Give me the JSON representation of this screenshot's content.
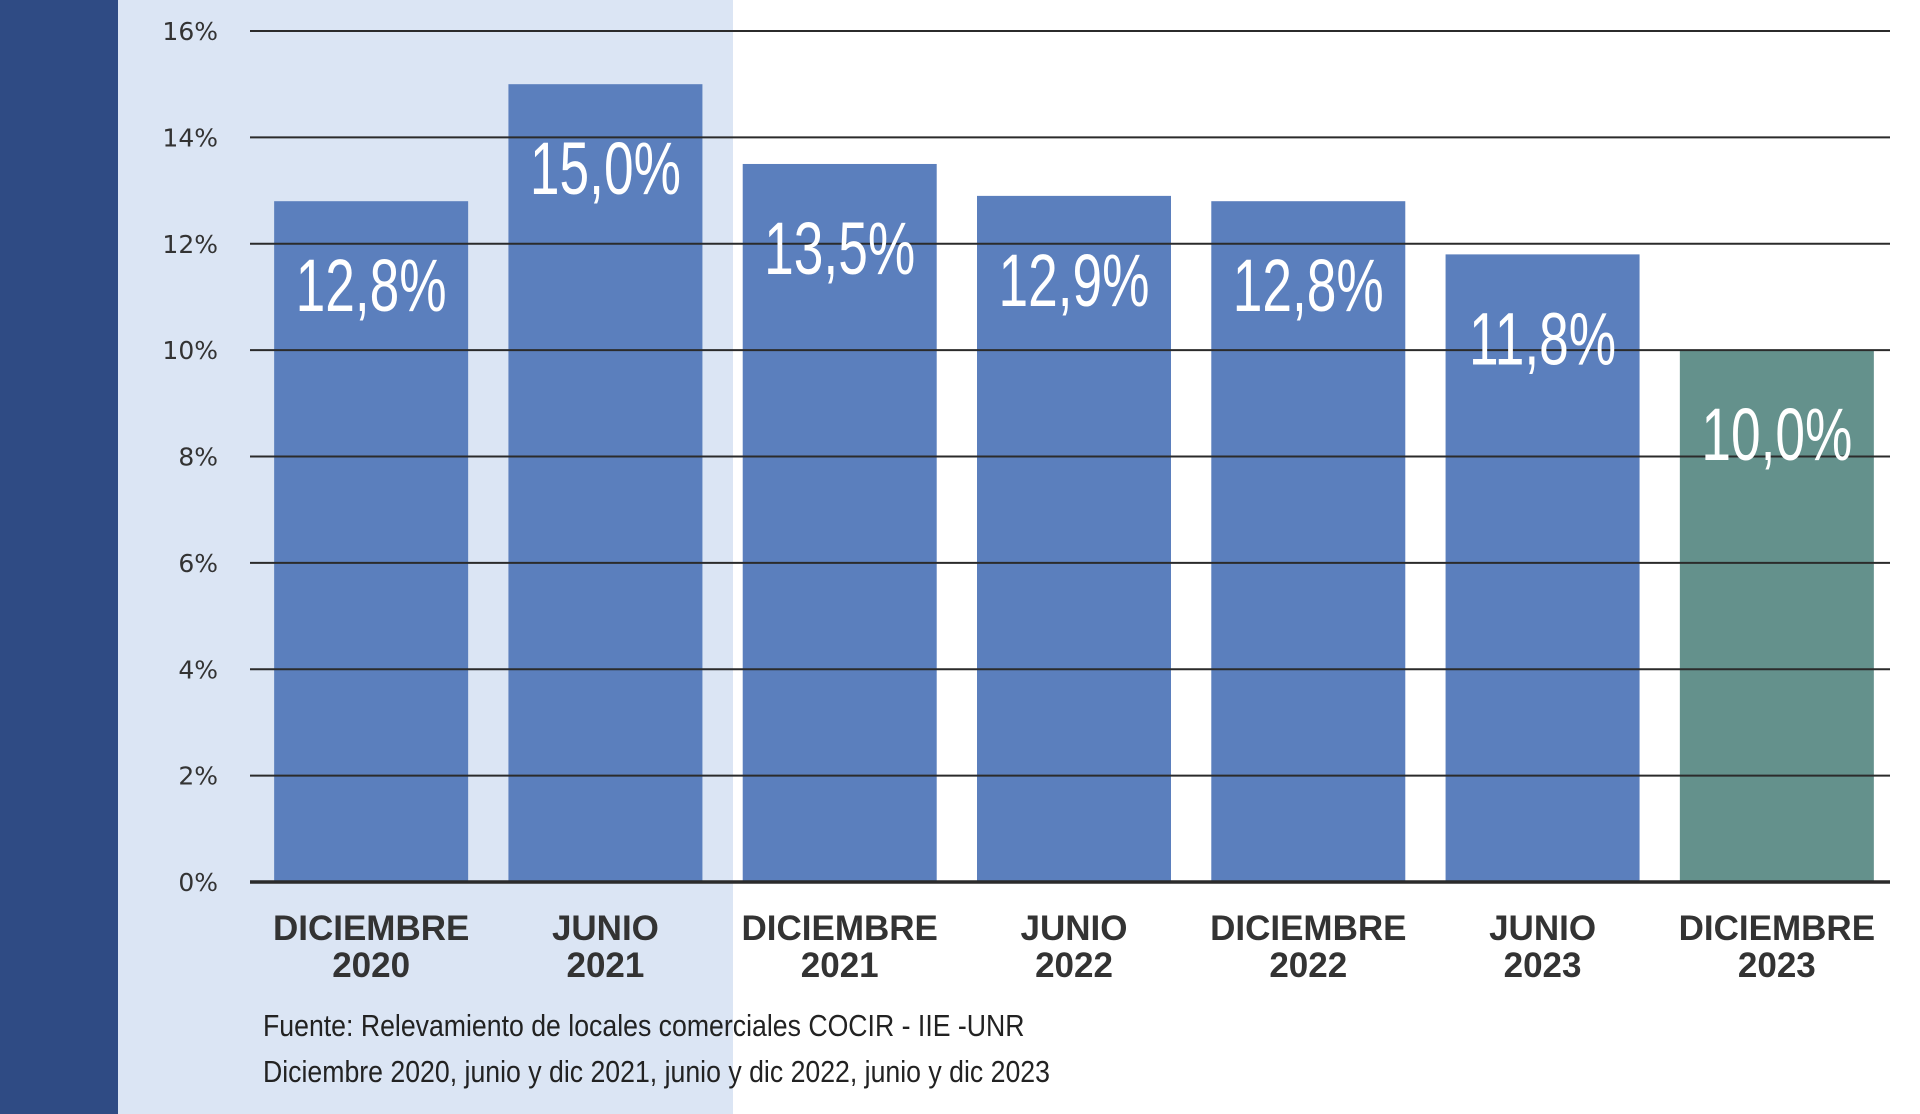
{
  "colors": {
    "left_band": "#2f4b84",
    "highlight_panel": "#dbe5f4",
    "bar": "#5b7fbd",
    "bar_highlight": "#64918c",
    "grid": "#2b2b2b",
    "value_label": "#ffffff"
  },
  "chart_data": {
    "type": "bar",
    "categories": [
      [
        "DICIEMBRE",
        "2020"
      ],
      [
        "JUNIO",
        "2021"
      ],
      [
        "DICIEMBRE",
        "2021"
      ],
      [
        "JUNIO",
        "2022"
      ],
      [
        "DICIEMBRE",
        "2022"
      ],
      [
        "JUNIO",
        "2023"
      ],
      [
        "DICIEMBRE",
        "2023"
      ]
    ],
    "values": [
      12.8,
      15.0,
      13.5,
      12.9,
      12.8,
      11.8,
      10.0
    ],
    "value_labels": [
      "12,8%",
      "15,0%",
      "13,5%",
      "12,9%",
      "12,8%",
      "11,8%",
      "10,0%"
    ],
    "highlighted_index": 6,
    "ylim": [
      0,
      16
    ],
    "y_ticks": [
      0,
      2,
      4,
      6,
      8,
      10,
      12,
      14,
      16
    ],
    "y_tick_labels": [
      "0%",
      "2%",
      "4%",
      "6%",
      "8%",
      "10%",
      "12%",
      "14%",
      "16%"
    ],
    "grid": true
  },
  "source": {
    "line1": "Fuente: Relevamiento de locales comerciales COCIR - IIE -UNR",
    "line2": "Diciembre 2020, junio y dic 2021, junio y dic 2022, junio y dic 2023"
  }
}
